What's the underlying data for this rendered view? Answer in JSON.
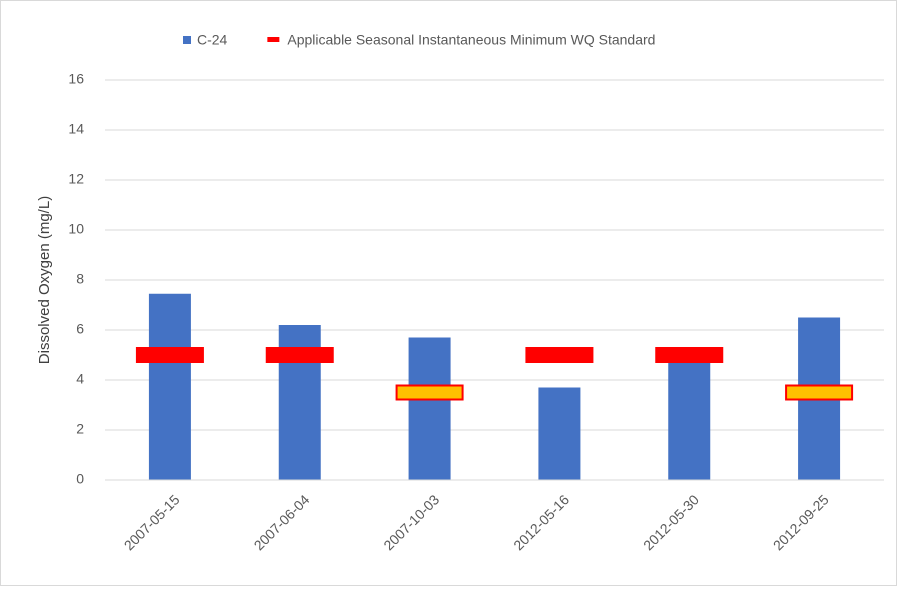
{
  "chart_data": {
    "type": "bar",
    "categories": [
      "2007-05-15",
      "2007-06-04",
      "2007-10-03",
      "2012-05-16",
      "2012-05-30",
      "2012-09-25"
    ],
    "series": [
      {
        "name": "C-24",
        "type": "bar",
        "color": "#4472c4",
        "values": [
          7.45,
          6.2,
          5.7,
          3.7,
          4.8,
          6.5
        ]
      },
      {
        "name": "Applicable Seasonal Instantaneous Minimum WQ Standard",
        "type": "marker",
        "color": "#ff0000",
        "point_colors": [
          "#ff0000",
          "#ff0000",
          "#ffc000",
          "#ff0000",
          "#ff0000",
          "#ffc000"
        ],
        "values": [
          5,
          5,
          3.5,
          5,
          5,
          3.5
        ]
      }
    ],
    "ylabel": "Dissolved Oxygen (mg/L)",
    "ylim": [
      0,
      16
    ],
    "yticks": [
      0,
      2,
      4,
      6,
      8,
      10,
      12,
      14,
      16
    ],
    "grid": true,
    "legend": "top"
  }
}
